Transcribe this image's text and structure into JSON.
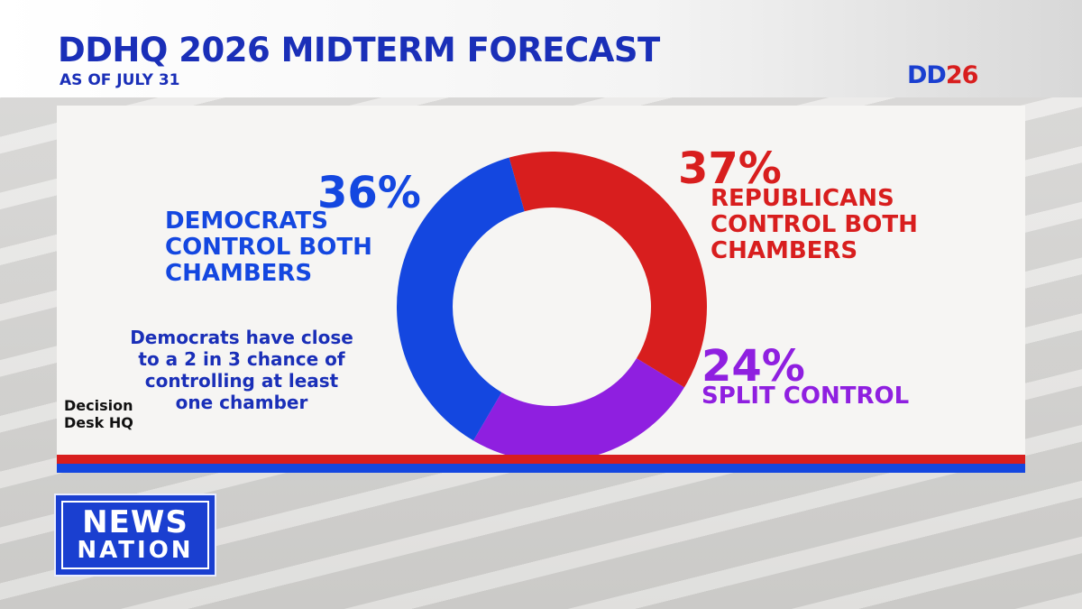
{
  "header": {
    "title": "DDHQ 2026 MIDTERM FORECAST",
    "subtitle": "AS OF JULY 31",
    "badge_dd": "DD",
    "badge_year": "26"
  },
  "chart_data": {
    "type": "pie",
    "donut": true,
    "slices": [
      {
        "label": "REPUBLICANS CONTROL BOTH CHAMBERS",
        "value": 37,
        "display": "37%",
        "color": "#d81e1e"
      },
      {
        "label": "SPLIT CONTROL",
        "value": 24,
        "display": "24%",
        "color": "#8f1fe0"
      },
      {
        "label": "DEMOCRATS CONTROL BOTH CHAMBERS",
        "value": 36,
        "display": "36%",
        "color": "#1447e0"
      }
    ],
    "labels": {
      "dem_pct": "36%",
      "dem_lines": [
        "DEMOCRATS",
        "CONTROL BOTH",
        "CHAMBERS"
      ],
      "rep_pct": "37%",
      "rep_lines": [
        "REPUBLICANS",
        "CONTROL BOTH",
        "CHAMBERS"
      ],
      "split_pct": "24%",
      "split_lines": [
        "SPLIT CONTROL"
      ]
    },
    "note_lines": [
      "Democrats have close",
      "to a 2 in 3 chance of",
      "controlling at least",
      "one chamber"
    ]
  },
  "logos": {
    "ddhq": [
      "Decision",
      "Desk HQ"
    ],
    "network": [
      "NEWS",
      "NATION"
    ]
  }
}
